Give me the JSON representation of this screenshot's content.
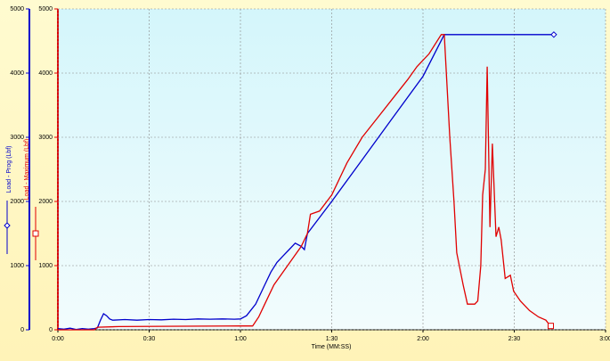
{
  "chart_data": {
    "type": "line",
    "x_label": "Time (MM:SS)",
    "y_label": "Load - Prog (Lbf)",
    "y2_label": "Load - Maximum (Lbf)",
    "xlim": [
      0,
      180
    ],
    "xticks": [
      {
        "value": 0,
        "label": "0:00"
      },
      {
        "value": 30,
        "label": "0:30"
      },
      {
        "value": 60,
        "label": "1:00"
      },
      {
        "value": 90,
        "label": "1:30"
      },
      {
        "value": 120,
        "label": "2:00"
      },
      {
        "value": 150,
        "label": "2:30"
      },
      {
        "value": 180,
        "label": "3:00"
      }
    ],
    "ylim": [
      0,
      5000
    ],
    "yticks": [
      0,
      1000,
      2000,
      3000,
      4000,
      5000
    ],
    "y2lim": [
      0,
      5000
    ],
    "y2ticks": [
      0,
      1000,
      2000,
      3000,
      4000,
      5000
    ],
    "grid": true,
    "series": [
      {
        "name": "Load - Prog (Lbf)",
        "color": "#0000cc",
        "axis": "y",
        "x": [
          0,
          2,
          4,
          6,
          8,
          10,
          12,
          13,
          14,
          15,
          16,
          17,
          18,
          22,
          26,
          30,
          34,
          38,
          42,
          46,
          50,
          54,
          58,
          60,
          62,
          65,
          68,
          70,
          72,
          74,
          76,
          78,
          80,
          81,
          82,
          90,
          100,
          110,
          120,
          127,
          128,
          163
        ],
        "values": [
          20,
          10,
          25,
          5,
          20,
          10,
          20,
          30,
          150,
          250,
          220,
          170,
          150,
          160,
          150,
          160,
          155,
          165,
          160,
          170,
          165,
          170,
          165,
          170,
          220,
          400,
          700,
          900,
          1050,
          1150,
          1250,
          1350,
          1300,
          1250,
          1500,
          2000,
          2650,
          3300,
          3950,
          4600,
          4600,
          4600
        ]
      },
      {
        "name": "Load - Maximum (Lbf)",
        "color": "#e00000",
        "axis": "y2",
        "x": [
          0,
          12,
          13,
          20,
          40,
          60,
          64,
          66,
          68,
          71,
          74,
          77,
          80,
          82,
          83,
          86,
          90,
          95,
          100,
          105,
          110,
          115,
          118,
          122,
          126,
          127,
          128.8,
          130.2,
          131.1,
          133.2,
          134.6,
          137,
          138,
          139,
          139.6,
          140.5,
          141.1,
          142,
          142.8,
          144,
          144.9,
          145.7,
          147,
          148.7,
          149.8,
          152,
          155,
          158,
          160.4,
          161.5,
          162
        ],
        "values": [
          0,
          0,
          40,
          50,
          55,
          60,
          60,
          200,
          400,
          700,
          900,
          1100,
          1300,
          1500,
          1800,
          1850,
          2100,
          2600,
          3000,
          3300,
          3600,
          3900,
          4100,
          4300,
          4600,
          4600,
          3000,
          2000,
          1200,
          700,
          400,
          400,
          450,
          1000,
          2100,
          2500,
          4100,
          1600,
          2900,
          1450,
          1600,
          1400,
          800,
          850,
          600,
          450,
          300,
          200,
          150,
          80,
          60
        ]
      }
    ]
  }
}
